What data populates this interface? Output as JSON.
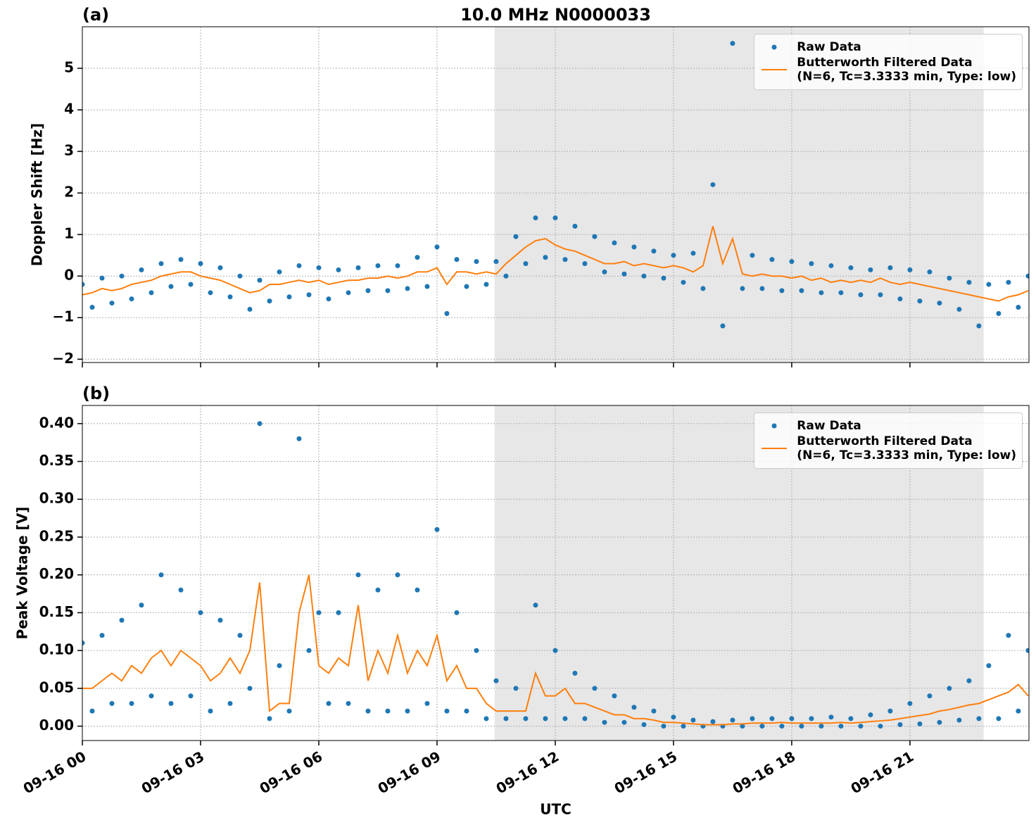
{
  "chart_data": [
    {
      "type": "line",
      "panel_label": "(a)",
      "title": "10.0 MHz N0000033",
      "ylabel": "Doppler Shift [Hz]",
      "x": [
        0,
        0.25,
        0.5,
        0.75,
        1,
        1.25,
        1.5,
        1.75,
        2,
        2.25,
        2.5,
        2.75,
        3,
        3.25,
        3.5,
        3.75,
        4,
        4.25,
        4.5,
        4.75,
        5,
        5.25,
        5.5,
        5.75,
        6,
        6.25,
        6.5,
        6.75,
        7,
        7.25,
        7.5,
        7.75,
        8,
        8.25,
        8.5,
        8.75,
        9,
        9.25,
        9.5,
        9.75,
        10,
        10.25,
        10.5,
        10.75,
        11,
        11.25,
        11.5,
        11.75,
        12,
        12.25,
        12.5,
        12.75,
        13,
        13.25,
        13.5,
        13.75,
        14,
        14.25,
        14.5,
        14.75,
        15,
        15.25,
        15.5,
        15.75,
        16,
        16.25,
        16.5,
        16.75,
        17,
        17.25,
        17.5,
        17.75,
        18,
        18.25,
        18.5,
        18.75,
        19,
        19.25,
        19.5,
        19.75,
        20,
        20.25,
        20.5,
        20.75,
        21,
        21.25,
        21.5,
        21.75,
        22,
        22.25,
        22.5,
        22.75,
        23,
        23.25,
        23.5,
        23.75,
        24
      ],
      "series": [
        {
          "name": "Raw Data",
          "style": "markers",
          "color": "#1f77b4",
          "values": [
            -0.2,
            -0.75,
            -0.05,
            -0.65,
            0.0,
            -0.55,
            0.15,
            -0.4,
            0.3,
            -0.25,
            0.4,
            -0.2,
            0.3,
            -0.4,
            0.2,
            -0.5,
            0.0,
            -0.8,
            -0.1,
            -0.6,
            0.1,
            -0.5,
            0.25,
            -0.45,
            0.2,
            -0.55,
            0.15,
            -0.4,
            0.2,
            -0.35,
            0.25,
            -0.35,
            0.25,
            -0.3,
            0.45,
            -0.25,
            0.7,
            -0.9,
            0.4,
            -0.25,
            0.35,
            -0.2,
            0.35,
            0.0,
            0.95,
            0.3,
            1.4,
            0.45,
            1.4,
            0.4,
            1.2,
            0.3,
            0.95,
            0.1,
            0.8,
            0.05,
            0.7,
            0.0,
            0.6,
            -0.05,
            0.5,
            -0.15,
            0.55,
            -0.3,
            2.2,
            -1.2,
            5.6,
            -0.3,
            0.5,
            -0.3,
            0.4,
            -0.35,
            0.35,
            -0.35,
            0.3,
            -0.4,
            0.25,
            -0.4,
            0.2,
            -0.45,
            0.15,
            -0.45,
            0.2,
            -0.55,
            0.15,
            -0.6,
            0.1,
            -0.65,
            -0.05,
            -0.8,
            -0.15,
            -1.2,
            -0.2,
            -0.9,
            -0.15,
            -0.75,
            0.0
          ]
        },
        {
          "name": "Butterworth Filtered Data\n(N=6, Tc=3.3333 min, Type: low)",
          "style": "line",
          "color": "#ff7f0e",
          "values": [
            -0.45,
            -0.4,
            -0.3,
            -0.35,
            -0.3,
            -0.2,
            -0.15,
            -0.1,
            0.0,
            0.05,
            0.1,
            0.1,
            0.0,
            -0.05,
            -0.1,
            -0.2,
            -0.3,
            -0.4,
            -0.35,
            -0.2,
            -0.2,
            -0.15,
            -0.1,
            -0.15,
            -0.1,
            -0.2,
            -0.15,
            -0.1,
            -0.1,
            -0.05,
            -0.05,
            0.0,
            -0.05,
            0.0,
            0.1,
            0.1,
            0.2,
            -0.2,
            0.1,
            0.1,
            0.05,
            0.1,
            0.05,
            0.3,
            0.5,
            0.7,
            0.85,
            0.9,
            0.75,
            0.65,
            0.6,
            0.5,
            0.4,
            0.3,
            0.3,
            0.35,
            0.25,
            0.3,
            0.25,
            0.2,
            0.25,
            0.2,
            0.1,
            0.25,
            1.2,
            0.3,
            0.9,
            0.05,
            0.0,
            0.05,
            0.0,
            0.0,
            -0.05,
            0.0,
            -0.1,
            -0.05,
            -0.15,
            -0.1,
            -0.15,
            -0.1,
            -0.15,
            -0.05,
            -0.15,
            -0.2,
            -0.15,
            -0.2,
            -0.25,
            -0.3,
            -0.35,
            -0.4,
            -0.45,
            -0.5,
            -0.55,
            -0.6,
            -0.5,
            -0.45,
            -0.35
          ]
        }
      ],
      "xlim": [
        0,
        24.02
      ],
      "xticks": [
        0,
        3,
        6,
        9,
        12,
        15,
        18,
        21
      ],
      "ylim": [
        -2.08,
        6.0
      ],
      "yticks": [
        {
          "value": -2,
          "label": "−2"
        },
        {
          "value": -1,
          "label": "−1"
        },
        0,
        1,
        2,
        3,
        4,
        5
      ],
      "shaded_xrange": [
        10.46,
        22.87
      ],
      "grid": true,
      "legend": "upper right"
    },
    {
      "type": "line",
      "panel_label": "(b)",
      "ylabel": "Peak Voltage [V]",
      "xlabel": "UTC",
      "x": [
        0,
        0.25,
        0.5,
        0.75,
        1,
        1.25,
        1.5,
        1.75,
        2,
        2.25,
        2.5,
        2.75,
        3,
        3.25,
        3.5,
        3.75,
        4,
        4.25,
        4.5,
        4.75,
        5,
        5.25,
        5.5,
        5.75,
        6,
        6.25,
        6.5,
        6.75,
        7,
        7.25,
        7.5,
        7.75,
        8,
        8.25,
        8.5,
        8.75,
        9,
        9.25,
        9.5,
        9.75,
        10,
        10.25,
        10.5,
        10.75,
        11,
        11.25,
        11.5,
        11.75,
        12,
        12.25,
        12.5,
        12.75,
        13,
        13.25,
        13.5,
        13.75,
        14,
        14.25,
        14.5,
        14.75,
        15,
        15.25,
        15.5,
        15.75,
        16,
        16.25,
        16.5,
        16.75,
        17,
        17.25,
        17.5,
        17.75,
        18,
        18.25,
        18.5,
        18.75,
        19,
        19.25,
        19.5,
        19.75,
        20,
        20.25,
        20.5,
        20.75,
        21,
        21.25,
        21.5,
        21.75,
        22,
        22.25,
        22.5,
        22.75,
        23,
        23.25,
        23.5,
        23.75,
        24
      ],
      "series": [
        {
          "name": "Raw Data",
          "style": "markers",
          "color": "#1f77b4",
          "values": [
            0.11,
            0.02,
            0.12,
            0.03,
            0.14,
            0.03,
            0.16,
            0.04,
            0.2,
            0.03,
            0.18,
            0.04,
            0.15,
            0.02,
            0.14,
            0.03,
            0.12,
            0.05,
            0.4,
            0.01,
            0.08,
            0.02,
            0.38,
            0.1,
            0.15,
            0.03,
            0.15,
            0.03,
            0.2,
            0.02,
            0.18,
            0.02,
            0.2,
            0.02,
            0.18,
            0.03,
            0.26,
            0.02,
            0.15,
            0.02,
            0.1,
            0.01,
            0.06,
            0.01,
            0.05,
            0.01,
            0.16,
            0.01,
            0.1,
            0.01,
            0.07,
            0.01,
            0.05,
            0.005,
            0.04,
            0.005,
            0.025,
            0.002,
            0.02,
            0.0,
            0.012,
            0.0,
            0.008,
            0.0,
            0.006,
            0.0,
            0.008,
            0.0,
            0.01,
            0.0,
            0.01,
            0.0,
            0.01,
            0.0,
            0.01,
            0.0,
            0.012,
            0.0,
            0.01,
            0.0,
            0.015,
            0.0,
            0.02,
            0.002,
            0.03,
            0.003,
            0.04,
            0.005,
            0.05,
            0.008,
            0.06,
            0.01,
            0.08,
            0.01,
            0.12,
            0.02,
            0.1
          ]
        },
        {
          "name": "Butterworth Filtered Data\n(N=6, Tc=3.3333 min, Type: low)",
          "style": "line",
          "color": "#ff7f0e",
          "values": [
            0.05,
            0.05,
            0.06,
            0.07,
            0.06,
            0.08,
            0.07,
            0.09,
            0.1,
            0.08,
            0.1,
            0.09,
            0.08,
            0.06,
            0.07,
            0.09,
            0.07,
            0.1,
            0.19,
            0.02,
            0.03,
            0.03,
            0.15,
            0.2,
            0.08,
            0.07,
            0.09,
            0.08,
            0.16,
            0.06,
            0.1,
            0.07,
            0.12,
            0.07,
            0.1,
            0.08,
            0.12,
            0.06,
            0.08,
            0.05,
            0.05,
            0.03,
            0.02,
            0.02,
            0.02,
            0.02,
            0.07,
            0.04,
            0.04,
            0.05,
            0.03,
            0.03,
            0.025,
            0.02,
            0.015,
            0.015,
            0.01,
            0.01,
            0.008,
            0.005,
            0.005,
            0.004,
            0.003,
            0.002,
            0.002,
            0.002,
            0.003,
            0.003,
            0.004,
            0.004,
            0.004,
            0.005,
            0.004,
            0.004,
            0.004,
            0.004,
            0.004,
            0.005,
            0.004,
            0.005,
            0.006,
            0.007,
            0.008,
            0.01,
            0.012,
            0.014,
            0.016,
            0.02,
            0.022,
            0.025,
            0.028,
            0.03,
            0.035,
            0.04,
            0.045,
            0.055,
            0.04
          ]
        }
      ],
      "xlim": [
        0,
        24.02
      ],
      "xticks": [
        {
          "value": 0,
          "label": "09-16 00"
        },
        {
          "value": 3,
          "label": "09-16 03"
        },
        {
          "value": 6,
          "label": "09-16 06"
        },
        {
          "value": 9,
          "label": "09-16 09"
        },
        {
          "value": 12,
          "label": "09-16 12"
        },
        {
          "value": 15,
          "label": "09-16 15"
        },
        {
          "value": 18,
          "label": "09-16 18"
        },
        {
          "value": 21,
          "label": "09-16 21"
        }
      ],
      "ylim": [
        -0.019,
        0.424
      ],
      "yticks": [
        {
          "value": 0,
          "label": "0.00"
        },
        {
          "value": 0.05,
          "label": "0.05"
        },
        {
          "value": 0.1,
          "label": "0.10"
        },
        {
          "value": 0.15,
          "label": "0.15"
        },
        {
          "value": 0.2,
          "label": "0.20"
        },
        {
          "value": 0.25,
          "label": "0.25"
        },
        {
          "value": 0.3,
          "label": "0.30"
        },
        {
          "value": 0.35,
          "label": "0.35"
        },
        {
          "value": 0.4,
          "label": "0.40"
        }
      ],
      "shaded_xrange": [
        10.46,
        22.87
      ],
      "grid": true,
      "legend": "upper right"
    }
  ]
}
